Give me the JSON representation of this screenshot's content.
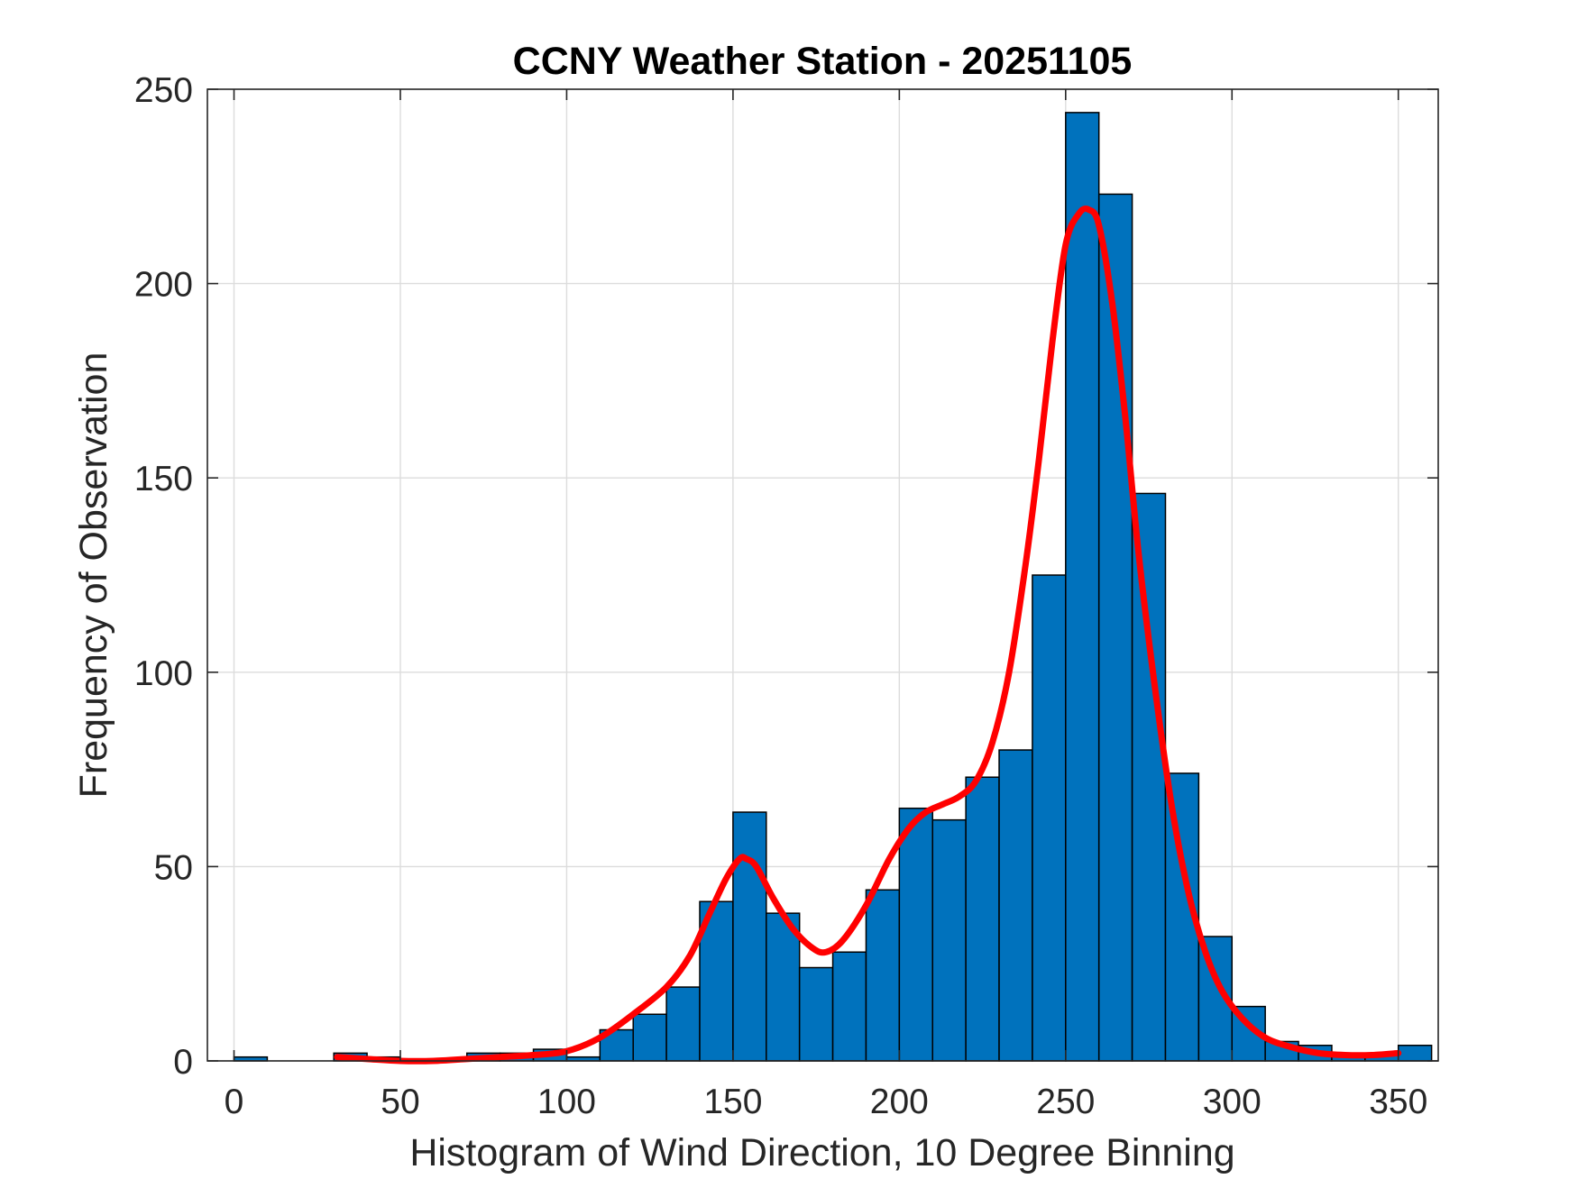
{
  "chart_data": {
    "type": "bar",
    "title": "CCNY Weather Station - 20251105",
    "xlabel": "Histogram of Wind Direction, 10 Degree Binning",
    "ylabel": "Frequency of Observation",
    "xlim": [
      -8,
      362
    ],
    "ylim": [
      0,
      250
    ],
    "xticks": [
      0,
      50,
      100,
      150,
      200,
      250,
      300,
      350
    ],
    "yticks": [
      0,
      50,
      100,
      150,
      200,
      250
    ],
    "grid": true,
    "bar_color": "#0072BD",
    "bar_edge_color": "#000000",
    "bins": [
      {
        "start": 0,
        "end": 10,
        "count": 1
      },
      {
        "start": 10,
        "end": 20,
        "count": 0
      },
      {
        "start": 20,
        "end": 30,
        "count": 0
      },
      {
        "start": 30,
        "end": 40,
        "count": 2
      },
      {
        "start": 40,
        "end": 50,
        "count": 1
      },
      {
        "start": 50,
        "end": 60,
        "count": 0
      },
      {
        "start": 60,
        "end": 70,
        "count": 0
      },
      {
        "start": 70,
        "end": 80,
        "count": 2
      },
      {
        "start": 80,
        "end": 90,
        "count": 2
      },
      {
        "start": 90,
        "end": 100,
        "count": 3
      },
      {
        "start": 100,
        "end": 110,
        "count": 1
      },
      {
        "start": 110,
        "end": 120,
        "count": 8
      },
      {
        "start": 120,
        "end": 130,
        "count": 12
      },
      {
        "start": 130,
        "end": 140,
        "count": 19
      },
      {
        "start": 140,
        "end": 150,
        "count": 41
      },
      {
        "start": 150,
        "end": 160,
        "count": 64
      },
      {
        "start": 160,
        "end": 170,
        "count": 38
      },
      {
        "start": 170,
        "end": 180,
        "count": 24
      },
      {
        "start": 180,
        "end": 190,
        "count": 28
      },
      {
        "start": 190,
        "end": 200,
        "count": 44
      },
      {
        "start": 200,
        "end": 210,
        "count": 65
      },
      {
        "start": 210,
        "end": 220,
        "count": 62
      },
      {
        "start": 220,
        "end": 230,
        "count": 73
      },
      {
        "start": 230,
        "end": 240,
        "count": 80
      },
      {
        "start": 240,
        "end": 250,
        "count": 125
      },
      {
        "start": 250,
        "end": 260,
        "count": 244
      },
      {
        "start": 260,
        "end": 270,
        "count": 223
      },
      {
        "start": 270,
        "end": 280,
        "count": 146
      },
      {
        "start": 280,
        "end": 290,
        "count": 74
      },
      {
        "start": 290,
        "end": 300,
        "count": 32
      },
      {
        "start": 300,
        "end": 310,
        "count": 14
      },
      {
        "start": 310,
        "end": 320,
        "count": 5
      },
      {
        "start": 320,
        "end": 330,
        "count": 4
      },
      {
        "start": 330,
        "end": 340,
        "count": 2
      },
      {
        "start": 340,
        "end": 350,
        "count": 2
      },
      {
        "start": 350,
        "end": 360,
        "count": 4
      }
    ],
    "series": [
      {
        "name": "fit",
        "type": "line",
        "color": "#FF0000",
        "x": [
          31,
          40,
          50,
          60,
          70,
          80,
          90,
          100,
          110,
          120,
          130,
          137,
          143,
          148,
          152,
          154,
          157,
          162,
          168,
          174,
          178,
          183,
          190,
          197,
          203,
          208,
          213,
          218,
          223,
          228,
          233,
          238,
          242,
          246,
          250,
          254,
          257,
          260,
          264,
          268,
          272,
          277,
          282,
          287,
          292,
          297,
          303,
          310,
          318,
          326,
          334,
          342,
          350
        ],
        "y": [
          1,
          0.5,
          0,
          0,
          0.5,
          1,
          1.5,
          2.5,
          6,
          12,
          19,
          27,
          38,
          47,
          52,
          52,
          50,
          42,
          34,
          29,
          28,
          31,
          40,
          52,
          60,
          64,
          66,
          68,
          72,
          82,
          100,
          128,
          155,
          185,
          210,
          218,
          219,
          215,
          195,
          165,
          130,
          95,
          65,
          43,
          28,
          18,
          11,
          6,
          3.5,
          2,
          1.5,
          1.5,
          2
        ]
      }
    ]
  }
}
